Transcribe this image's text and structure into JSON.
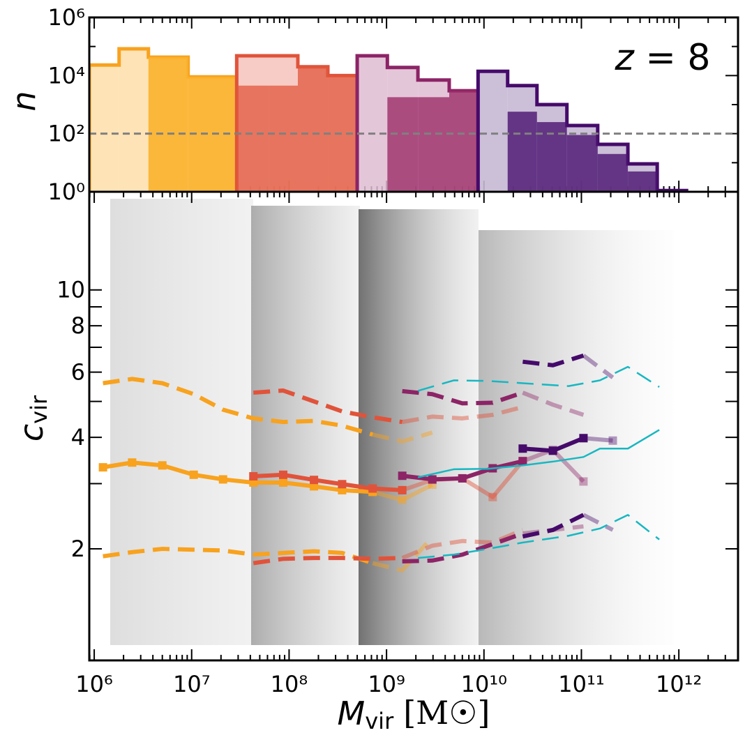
{
  "chart_data": [
    {
      "type": "histogram",
      "ylabel": "n",
      "annotation": {
        "variable": "z",
        "text": "= 8"
      },
      "log_y": true,
      "ylim": [
        1,
        1000000
      ],
      "yticks": [
        {
          "value": 1,
          "label": "10⁰"
        },
        {
          "value": 100,
          "label": "10²"
        },
        {
          "value": 10000,
          "label": "10⁴"
        },
        {
          "value": 1000000,
          "label": "10⁶"
        }
      ],
      "yminor": [
        10,
        1000,
        100000
      ],
      "hline": {
        "value": 100,
        "color": "#808080"
      },
      "series": [
        {
          "color": "#f8a21e",
          "fill": "#fde3b5",
          "alpha": 1,
          "outline": true,
          "bins": [
            890000,
            1800000,
            3600000,
            9200000,
            29000000
          ],
          "values": [
            23000,
            83000,
            43000,
            9000
          ]
        },
        {
          "color": "#f8a21e",
          "fill": "#fbb12c",
          "alpha": 0.9,
          "outline": false,
          "bins": [
            3600000,
            9200000,
            29000000
          ],
          "values": [
            43000,
            9000
          ]
        },
        {
          "color": "#e0533a",
          "fill": "#f6c5c0",
          "alpha": 0.9,
          "outline": true,
          "bins": [
            29000000,
            62000000,
            123000000,
            250000000,
            500000000
          ],
          "values": [
            48000,
            48000,
            20000,
            10000
          ]
        },
        {
          "color": "#e0533a",
          "fill": "#e2573b",
          "alpha": 0.75,
          "outline": false,
          "bins": [
            29000000,
            62000000,
            123000000,
            250000000,
            500000000
          ],
          "values": [
            4500,
            4500,
            20000,
            10000
          ]
        },
        {
          "color": "#8c2466",
          "fill": "#dfbcd2",
          "alpha": 0.85,
          "outline": true,
          "bins": [
            500000000,
            1020000000,
            2100000000,
            4400000000,
            8700000000
          ],
          "values": [
            48000,
            19000,
            7000,
            3000
          ]
        },
        {
          "color": "#8c2466",
          "fill": "#9c2d68",
          "alpha": 0.8,
          "outline": false,
          "bins": [
            1020000000,
            2100000000,
            4400000000,
            8700000000
          ],
          "values": [
            1800,
            1800,
            3000
          ]
        },
        {
          "color": "#450a6a",
          "fill": "#c7b8d4",
          "alpha": 0.9,
          "outline": true,
          "bins": [
            8700000000,
            17500000000,
            35000000000,
            71000000000,
            147000000000,
            300000000000,
            600000000000,
            1200000000000
          ],
          "values": [
            14000,
            4500,
            1000,
            190,
            43,
            9.1,
            1.1
          ]
        },
        {
          "color": "#450a6a",
          "fill": "#4a1370",
          "alpha": 0.8,
          "outline": false,
          "bins": [
            17500000000,
            35000000000,
            71000000000,
            147000000000,
            300000000000,
            600000000000
          ],
          "values": [
            570,
            250,
            90,
            20,
            5
          ]
        }
      ]
    },
    {
      "type": "line",
      "xlabel": {
        "symbol": "M",
        "subscript": "vir",
        "unit": "[M☉]"
      },
      "ylabel": {
        "symbol": "c",
        "subscript": "vir"
      },
      "log_x": true,
      "log_y": true,
      "xlim": [
        890000,
        4050000000000
      ],
      "ylim": [
        1,
        18.4
      ],
      "xticks": [
        {
          "value": 1000000,
          "label": "10⁶"
        },
        {
          "value": 10000000,
          "label": "10⁷"
        },
        {
          "value": 100000000,
          "label": "10⁸"
        },
        {
          "value": 1000000000,
          "label": "10⁹"
        },
        {
          "value": 10000000000,
          "label": "10¹⁰"
        },
        {
          "value": 100000000000,
          "label": "10¹¹"
        },
        {
          "value": 1000000000000,
          "label": "10¹²"
        }
      ],
      "xminor": [
        900000,
        2000000,
        3000000,
        4000000,
        5000000,
        6000000,
        7000000,
        8000000,
        9000000,
        20000000,
        30000000,
        40000000,
        50000000,
        60000000,
        70000000,
        80000000,
        90000000,
        200000000,
        300000000,
        400000000,
        500000000,
        600000000,
        700000000,
        800000000,
        900000000,
        2000000000,
        3000000000,
        4000000000,
        5000000000,
        6000000000,
        7000000000,
        8000000000,
        9000000000,
        20000000000,
        30000000000,
        40000000000,
        50000000000,
        60000000000,
        70000000000,
        80000000000,
        90000000000,
        200000000000,
        300000000000,
        400000000000,
        500000000000,
        600000000000,
        700000000000,
        800000000000,
        900000000000,
        2000000000000,
        3000000000000
      ],
      "yticks": [
        2,
        4,
        6,
        8,
        10
      ],
      "yminor": [
        3,
        5,
        7,
        9
      ],
      "series": [
        {
          "color": "#f8a21e",
          "dash": false,
          "width": 6,
          "alpha": 1,
          "marker": "square",
          "x": [
            1230000,
            2450000,
            5000000,
            10500000,
            21000000,
            43000000,
            87000000,
            180000000,
            350000000,
            720000000
          ],
          "values": [
            3.32,
            3.42,
            3.36,
            3.17,
            3.08,
            3.02,
            3.02,
            2.95,
            2.88,
            2.85
          ]
        },
        {
          "color": "#f8a21e",
          "dash": false,
          "width": 6,
          "alpha": 0.45,
          "marker": "square",
          "x": [
            720000000,
            1450000000,
            2950000000
          ],
          "values": [
            2.85,
            2.71,
            2.98
          ]
        },
        {
          "color": "#f8a21e",
          "dash": true,
          "width": 6,
          "alpha": 1,
          "marker": null,
          "x": [
            1230000,
            2450000,
            5000000,
            10500000,
            21000000,
            43000000,
            87000000,
            180000000,
            350000000,
            720000000
          ],
          "values": [
            5.6,
            5.75,
            5.6,
            5.23,
            4.75,
            4.5,
            4.4,
            4.43,
            4.3,
            4.07
          ]
        },
        {
          "color": "#f8a21e",
          "dash": true,
          "width": 6,
          "alpha": 0.45,
          "marker": null,
          "x": [
            720000000,
            1450000000,
            2950000000
          ],
          "values": [
            4.07,
            3.9,
            4.12
          ]
        },
        {
          "color": "#f8a21e",
          "dash": true,
          "width": 6,
          "alpha": 1,
          "marker": null,
          "x": [
            1230000,
            2450000,
            5000000,
            10500000,
            21000000,
            43000000,
            87000000,
            180000000,
            350000000,
            720000000
          ],
          "values": [
            1.91,
            1.96,
            2.0,
            1.99,
            1.98,
            1.93,
            1.95,
            1.97,
            1.95,
            1.83
          ]
        },
        {
          "color": "#f8a21e",
          "dash": true,
          "width": 6,
          "alpha": 0.45,
          "marker": null,
          "x": [
            720000000,
            1450000000,
            2950000000
          ],
          "values": [
            1.83,
            1.75,
            2.15
          ]
        },
        {
          "color": "#e0533a",
          "dash": false,
          "width": 6,
          "alpha": 1,
          "marker": "square",
          "x": [
            43000000,
            87000000,
            180000000,
            350000000,
            720000000,
            1450000000
          ],
          "values": [
            3.14,
            3.17,
            3.07,
            2.99,
            2.91,
            2.88
          ]
        },
        {
          "color": "#e0533a",
          "dash": false,
          "width": 6,
          "alpha": 0.45,
          "marker": "square",
          "x": [
            1450000000,
            2950000000,
            6000000000,
            12300000000,
            25000000000
          ],
          "values": [
            2.88,
            3.07,
            3.1,
            2.76,
            3.45
          ]
        },
        {
          "color": "#e0533a",
          "dash": true,
          "width": 6,
          "alpha": 1,
          "marker": null,
          "x": [
            43000000,
            87000000,
            180000000,
            350000000,
            720000000,
            1450000000
          ],
          "values": [
            5.28,
            5.35,
            5.0,
            4.7,
            4.53,
            4.4
          ]
        },
        {
          "color": "#e0533a",
          "dash": true,
          "width": 6,
          "alpha": 0.45,
          "marker": null,
          "x": [
            1450000000,
            2950000000,
            6000000000,
            12300000000,
            25000000000
          ],
          "values": [
            4.4,
            4.55,
            4.5,
            4.6,
            4.83
          ]
        },
        {
          "color": "#e0533a",
          "dash": true,
          "width": 6,
          "alpha": 1,
          "marker": null,
          "x": [
            43000000,
            87000000,
            180000000,
            350000000,
            720000000,
            1450000000
          ],
          "values": [
            1.83,
            1.88,
            1.89,
            1.89,
            1.88,
            1.89
          ]
        },
        {
          "color": "#e0533a",
          "dash": true,
          "width": 6,
          "alpha": 0.45,
          "marker": null,
          "x": [
            1450000000,
            2950000000,
            6000000000,
            12300000000,
            25000000000
          ],
          "values": [
            1.89,
            2.04,
            2.1,
            2.08,
            2.25
          ]
        },
        {
          "color": "#8c2466",
          "dash": false,
          "width": 6,
          "alpha": 1,
          "marker": "square",
          "x": [
            1450000000,
            2950000000,
            6000000000,
            12300000000,
            25000000000
          ],
          "values": [
            3.15,
            3.08,
            3.1,
            3.3,
            3.45
          ]
        },
        {
          "color": "#8c2466",
          "dash": false,
          "width": 6,
          "alpha": 0.4,
          "marker": "square",
          "x": [
            25000000000,
            51000000000,
            105000000000
          ],
          "values": [
            3.45,
            3.7,
            3.04
          ]
        },
        {
          "color": "#8c2466",
          "dash": true,
          "width": 6,
          "alpha": 1,
          "marker": null,
          "x": [
            1450000000,
            2950000000,
            6000000000,
            12300000000,
            25000000000
          ],
          "values": [
            5.33,
            5.23,
            4.94,
            4.96,
            5.28
          ]
        },
        {
          "color": "#8c2466",
          "dash": true,
          "width": 6,
          "alpha": 0.4,
          "marker": null,
          "x": [
            25000000000,
            51000000000,
            105000000000
          ],
          "values": [
            5.28,
            4.9,
            4.6
          ]
        },
        {
          "color": "#8c2466",
          "dash": true,
          "width": 6,
          "alpha": 1,
          "marker": null,
          "x": [
            1450000000,
            2950000000,
            6000000000,
            12300000000,
            25000000000
          ],
          "values": [
            1.85,
            1.86,
            1.93,
            2.06,
            2.2
          ]
        },
        {
          "color": "#8c2466",
          "dash": true,
          "width": 6,
          "alpha": 0.4,
          "marker": null,
          "x": [
            25000000000,
            51000000000,
            105000000000
          ],
          "values": [
            2.2,
            2.25,
            2.3
          ]
        },
        {
          "color": "#450a6a",
          "dash": false,
          "width": 6,
          "alpha": 1,
          "marker": "square",
          "x": [
            25000000000,
            51000000000,
            105000000000
          ],
          "values": [
            3.73,
            3.68,
            3.98
          ]
        },
        {
          "color": "#450a6a",
          "dash": false,
          "width": 6,
          "alpha": 0.4,
          "marker": "square",
          "x": [
            105000000000,
            210000000000
          ],
          "values": [
            3.98,
            3.92
          ]
        },
        {
          "color": "#450a6a",
          "dash": true,
          "width": 6,
          "alpha": 1,
          "marker": null,
          "x": [
            25000000000,
            51000000000,
            105000000000
          ],
          "values": [
            6.4,
            6.26,
            6.65
          ]
        },
        {
          "color": "#450a6a",
          "dash": true,
          "width": 6,
          "alpha": 0.4,
          "marker": null,
          "x": [
            105000000000,
            210000000000
          ],
          "values": [
            6.65,
            5.8
          ]
        },
        {
          "color": "#450a6a",
          "dash": true,
          "width": 6,
          "alpha": 1,
          "marker": null,
          "x": [
            25000000000,
            51000000000,
            105000000000
          ],
          "values": [
            2.16,
            2.25,
            2.47
          ]
        },
        {
          "color": "#450a6a",
          "dash": true,
          "width": 6,
          "alpha": 0.4,
          "marker": null,
          "x": [
            105000000000,
            210000000000
          ],
          "values": [
            2.47,
            2.25
          ]
        },
        {
          "color": "#17b7c1",
          "dash": false,
          "width": 2.5,
          "alpha": 1,
          "marker": null,
          "x": [
            2100000000,
            4900000000,
            11000000000,
            25000000000,
            51000000000,
            105000000000,
            155000000000,
            300000000000,
            630000000000
          ],
          "values": [
            3.12,
            3.28,
            3.29,
            3.36,
            3.44,
            3.54,
            3.73,
            3.73,
            4.19
          ]
        },
        {
          "color": "#17b7c1",
          "dash": true,
          "width": 2.5,
          "alpha": 1,
          "marker": null,
          "x": [
            2100000000,
            4900000000,
            11000000000,
            25000000000,
            74000000000,
            155000000000,
            300000000000,
            630000000000
          ],
          "values": [
            5.34,
            5.7,
            5.68,
            5.6,
            5.5,
            5.7,
            6.2,
            5.47
          ]
        },
        {
          "color": "#17b7c1",
          "dash": true,
          "width": 2.5,
          "alpha": 1,
          "marker": null,
          "x": [
            2100000000,
            4900000000,
            11000000000,
            25000000000,
            74000000000,
            155000000000,
            300000000000,
            630000000000
          ],
          "values": [
            1.89,
            1.93,
            2.0,
            2.08,
            2.17,
            2.27,
            2.47,
            2.12
          ]
        }
      ]
    }
  ]
}
